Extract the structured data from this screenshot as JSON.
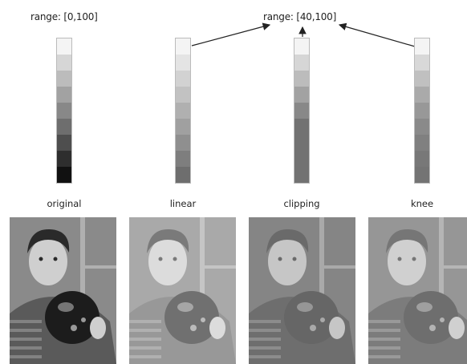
{
  "range_labels": {
    "original": "range: [0,100]",
    "mapped": "range: [40,100]"
  },
  "columns": [
    {
      "key": "original",
      "label": "original"
    },
    {
      "key": "linear",
      "label": "linear"
    },
    {
      "key": "clipping",
      "label": "clipping"
    },
    {
      "key": "knee",
      "label": "knee"
    }
  ],
  "bars": {
    "original": [
      "#f4f4f4",
      "#d6d6d6",
      "#bcbcbc",
      "#a2a2a2",
      "#888888",
      "#6e6e6e",
      "#4e4e4e",
      "#2e2e2e",
      "#111111"
    ],
    "linear": [
      "#f4f4f4",
      "#e4e4e4",
      "#d2d2d2",
      "#c2c2c2",
      "#b0b0b0",
      "#a0a0a0",
      "#8f8f8f",
      "#7e7e7e",
      "#6e6e6e"
    ],
    "clipping": [
      "#f4f4f4",
      "#d6d6d6",
      "#bcbcbc",
      "#a2a2a2",
      "#888888",
      "#727272",
      "#727272",
      "#727272",
      "#727272"
    ],
    "knee": [
      "#f4f4f4",
      "#d8d8d8",
      "#c0c0c0",
      "#aaaaaa",
      "#989898",
      "#8a8a8a",
      "#808080",
      "#787878",
      "#747474"
    ]
  },
  "photo_tones": {
    "original": {
      "bg": "#8a8a8a",
      "face": "#cfcfcf",
      "hair": "#2a2a2a",
      "ball": "#1c1c1c",
      "shirt": "#5a5a5a"
    },
    "linear": {
      "bg": "#a9a9a9",
      "face": "#dcdcdc",
      "hair": "#7a7a7a",
      "ball": "#707070",
      "shirt": "#989898"
    },
    "clipping": {
      "bg": "#858585",
      "face": "#c6c6c6",
      "hair": "#6a6a6a",
      "ball": "#666666",
      "shirt": "#6e6e6e"
    },
    "knee": {
      "bg": "#969696",
      "face": "#d0d0d0",
      "hair": "#767676",
      "ball": "#6e6e6e",
      "shirt": "#7c7c7c"
    }
  }
}
